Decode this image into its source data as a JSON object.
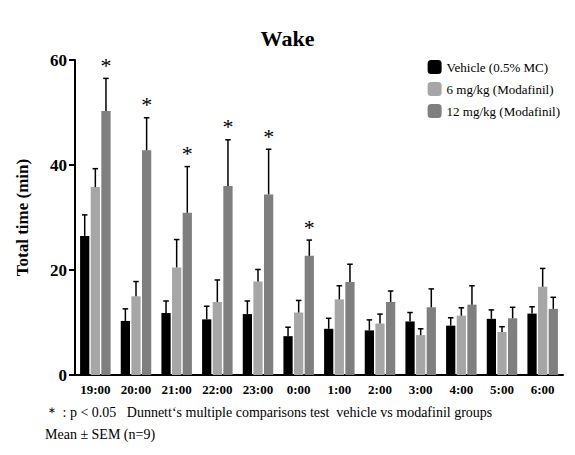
{
  "chart_data": {
    "type": "bar",
    "title": "Wake",
    "y_label": "Total time (min)",
    "categories": [
      "19:00",
      "20:00",
      "21:00",
      "22:00",
      "23:00",
      "0:00",
      "1:00",
      "2:00",
      "3:00",
      "4:00",
      "5:00",
      "6:00"
    ],
    "series": [
      {
        "name": "Vehicle (0.5% MC)",
        "color": "#000000",
        "values": [
          26.5,
          10.3,
          11.8,
          10.6,
          11.6,
          7.4,
          8.8,
          8.5,
          10.2,
          9.4,
          10.7,
          11.7
        ],
        "errors": [
          4.0,
          2.3,
          2.3,
          2.5,
          2.5,
          1.7,
          2.0,
          2.0,
          1.7,
          1.5,
          1.7,
          1.3
        ]
      },
      {
        "name": "6 mg/kg (Modafinil)",
        "color": "#a6a6a6",
        "values": [
          35.8,
          15.0,
          20.5,
          13.9,
          17.8,
          11.9,
          14.4,
          9.8,
          7.6,
          11.3,
          8.2,
          16.8
        ],
        "errors": [
          3.5,
          2.8,
          5.3,
          4.2,
          2.3,
          2.3,
          2.6,
          1.8,
          1.2,
          1.5,
          1.0,
          3.5
        ]
      },
      {
        "name": "12 mg/kg (Modafinil)",
        "color": "#7f7f7f",
        "values": [
          50.3,
          42.8,
          30.9,
          36.0,
          34.4,
          22.7,
          17.7,
          13.9,
          12.9,
          13.4,
          10.8,
          12.6
        ],
        "errors": [
          6.2,
          6.2,
          8.8,
          8.8,
          8.6,
          3.0,
          3.4,
          2.1,
          3.5,
          3.6,
          2.1,
          2.2
        ]
      }
    ],
    "annotations": [
      {
        "category": "19:00",
        "series": "12 mg/kg (Modafinil)",
        "text": "*"
      },
      {
        "category": "20:00",
        "series": "12 mg/kg (Modafinil)",
        "text": "*"
      },
      {
        "category": "21:00",
        "series": "12 mg/kg (Modafinil)",
        "text": "*"
      },
      {
        "category": "22:00",
        "series": "12 mg/kg (Modafinil)",
        "text": "*"
      },
      {
        "category": "23:00",
        "series": "12 mg/kg (Modafinil)",
        "text": "*"
      },
      {
        "category": "0:00",
        "series": "12 mg/kg (Modafinil)",
        "text": "*"
      }
    ],
    "notes": [
      "＊ : p < 0.05   Dunnett‘s multiple comparisons test  vehicle vs modafinil groups",
      "Mean ± SEM (n=9)"
    ],
    "ylim": [
      0,
      60
    ],
    "yticks": [
      0,
      20,
      40,
      60
    ],
    "grid": false,
    "legend": "upper right"
  }
}
